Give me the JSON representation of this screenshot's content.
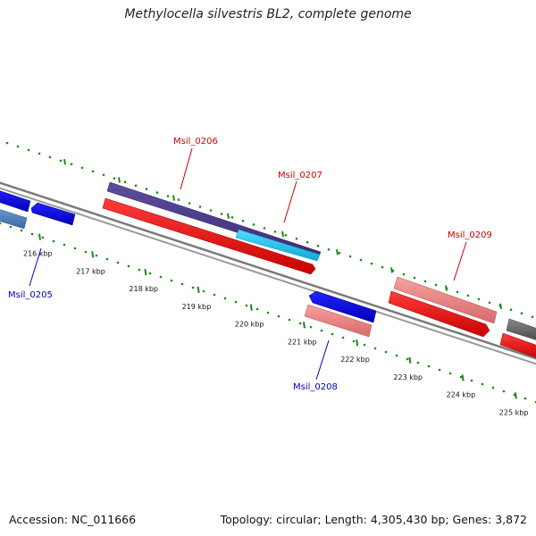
{
  "header": {
    "title": "Methylocella silvestris BL2, complete genome"
  },
  "footer": {
    "accession": "Accession: NC_011666",
    "summary": "Topology: circular; Length: 4,305,430 bp; Genes: 3,872"
  },
  "colors": {
    "backbone": "#808080",
    "tick_dots": "#1a8a1a",
    "forward_label": "#cc0000",
    "reverse_label": "#0000bb",
    "forward_cds": "#ff0000",
    "forward_light": "#f08080",
    "forward_dark": "#4b3b8a",
    "forward_cyan": "#22c4f0",
    "reverse_blue": "#0000ee",
    "reverse_steel": "#4a7ab0",
    "gray_gene": "#666666"
  },
  "ticks": [
    {
      "label": "216 kbp"
    },
    {
      "label": "217 kbp"
    },
    {
      "label": "218 kbp"
    },
    {
      "label": "219 kbp"
    },
    {
      "label": "220 kbp"
    },
    {
      "label": "221 kbp"
    },
    {
      "label": "222 kbp"
    },
    {
      "label": "223 kbp"
    },
    {
      "label": "224 kbp"
    },
    {
      "label": "225 kbp"
    }
  ],
  "genes": {
    "labels": {
      "g0205": "Msil_0205",
      "g0206": "Msil_0206",
      "g0207": "Msil_0207",
      "g0208": "Msil_0208",
      "g0209": "Msil_0209"
    }
  }
}
